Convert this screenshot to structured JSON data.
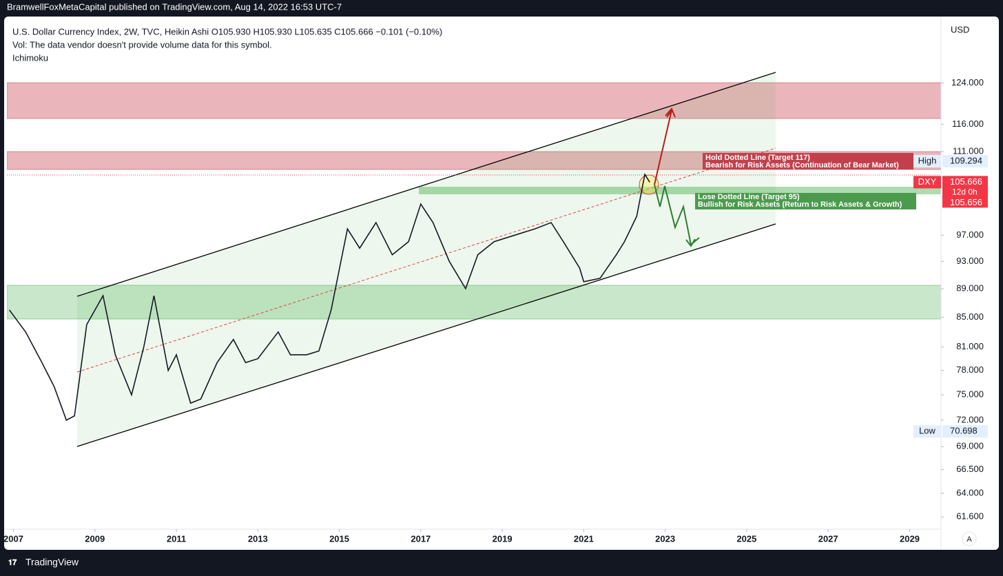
{
  "header": {
    "publisher": "BramwellFoxMetaCapital published on TradingView.com, Aug 14, 2022 16:53 UTC-7",
    "legend": [
      "U.S. Dollar Currency Index, 2W, TVC, Heikin Ashi  O105.930  H105.930  L105.635  C105.666  −0.101 (−0.10%)",
      "Vol: The data vendor doesn't provide volume data for this symbol.",
      "Ichimoku"
    ]
  },
  "chart_data": {
    "type": "line",
    "log_scale": true,
    "color": "#131722",
    "x": [
      2006.9,
      2007.3,
      2007.7,
      2008.0,
      2008.3,
      2008.5,
      2008.8,
      2009.2,
      2009.5,
      2009.9,
      2010.2,
      2010.45,
      2010.8,
      2011.0,
      2011.35,
      2011.6,
      2012.0,
      2012.4,
      2012.7,
      2013.0,
      2013.5,
      2013.8,
      2014.2,
      2014.5,
      2014.8,
      2015.2,
      2015.5,
      2015.9,
      2016.3,
      2016.7,
      2017.0,
      2017.3,
      2017.7,
      2018.1,
      2018.4,
      2018.8,
      2019.3,
      2019.8,
      2020.2,
      2020.5,
      2020.9,
      2021.0,
      2021.4,
      2021.8,
      2022.0,
      2022.3,
      2022.5,
      2022.62
    ],
    "values": [
      86,
      83,
      79,
      76,
      72,
      72.5,
      84,
      88,
      80,
      75,
      81,
      88,
      78,
      80,
      74,
      74.5,
      79,
      82,
      79,
      79.5,
      83,
      80,
      80,
      80.5,
      86,
      98,
      95,
      99,
      94,
      96,
      102,
      99,
      93,
      89,
      94,
      96,
      97,
      98,
      99,
      96,
      92,
      90,
      90.5,
      94,
      96,
      100,
      107,
      105.666
    ],
    "xlim": [
      2006.84,
      2029.77
    ],
    "xticks": [
      2007,
      2009,
      2011,
      2013,
      2015,
      2017,
      2019,
      2021,
      2023,
      2025,
      2027,
      2029
    ],
    "ylim": [
      60.4,
      138
    ],
    "yticks": [
      {
        "value": 124,
        "label": "124.000"
      },
      {
        "value": 116,
        "label": "116.000"
      },
      {
        "value": 111,
        "label": "111.000"
      },
      {
        "value": 97,
        "label": "97.000"
      },
      {
        "value": 93,
        "label": "93.000"
      },
      {
        "value": 89,
        "label": "89.000"
      },
      {
        "value": 85,
        "label": "85.000"
      },
      {
        "value": 81,
        "label": "81.000"
      },
      {
        "value": 78,
        "label": "78.000"
      },
      {
        "value": 75,
        "label": "75.000"
      },
      {
        "value": 72,
        "label": "72.000"
      },
      {
        "value": 69,
        "label": "69.000"
      },
      {
        "value": 66.5,
        "label": "66.500"
      },
      {
        "value": 64,
        "label": "64.000"
      },
      {
        "value": 61.6,
        "label": "61.600"
      }
    ],
    "axis_unit": "USD",
    "badges": {
      "high_label": "High",
      "high": 109.294,
      "symbol": "DXY",
      "last": 105.666,
      "countdown": "12d 0h",
      "prev": 105.656,
      "low_label": "Low",
      "low": 70.698
    },
    "annotations": [
      "Hold Dotted Line (Target 117)",
      "Bearish for Risk Assets (Continuation of Bear Market)",
      "Lose Dotted Line (Target 95)",
      "Bullish for Risk Assets (Return to Risk Assets & Growth)"
    ],
    "scale_mode": "A"
  },
  "footer": {
    "brand": "TradingView"
  }
}
